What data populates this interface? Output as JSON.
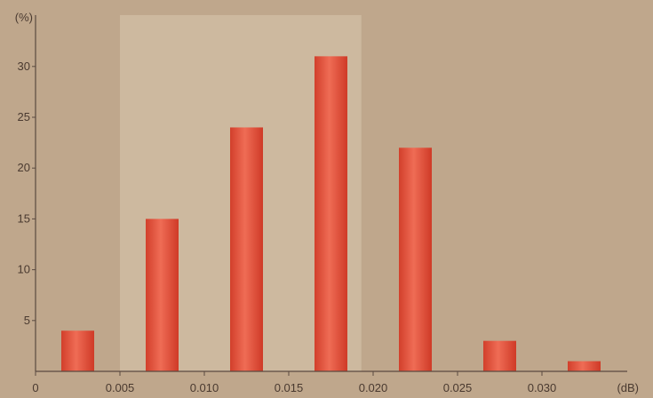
{
  "chart_data": {
    "type": "bar",
    "title": "",
    "xlabel": "",
    "ylabel": "",
    "y_unit": "(%)",
    "x_unit": "(dB)",
    "bins": [
      {
        "center": 0.0025,
        "width": 0.005,
        "value": 4
      },
      {
        "center": 0.0075,
        "width": 0.005,
        "value": 15
      },
      {
        "center": 0.0125,
        "width": 0.005,
        "value": 24
      },
      {
        "center": 0.0175,
        "width": 0.005,
        "value": 31
      },
      {
        "center": 0.0225,
        "width": 0.005,
        "value": 22
      },
      {
        "center": 0.0275,
        "width": 0.005,
        "value": 3
      },
      {
        "center": 0.0325,
        "width": 0.005,
        "value": 1
      }
    ],
    "xlim": [
      0,
      0.035
    ],
    "ylim": [
      0,
      35
    ],
    "x_ticks": [
      {
        "value": 0,
        "label": "0"
      },
      {
        "value": 0.005,
        "label": "0.005"
      },
      {
        "value": 0.01,
        "label": "0.010"
      },
      {
        "value": 0.015,
        "label": "0.015"
      },
      {
        "value": 0.02,
        "label": "0.020"
      },
      {
        "value": 0.025,
        "label": "0.025"
      },
      {
        "value": 0.03,
        "label": "0.030"
      }
    ],
    "y_ticks": [
      {
        "value": 5,
        "label": "5"
      },
      {
        "value": 10,
        "label": "10"
      },
      {
        "value": 15,
        "label": "15"
      },
      {
        "value": 20,
        "label": "20"
      },
      {
        "value": 25,
        "label": "25"
      },
      {
        "value": 30,
        "label": "30"
      }
    ],
    "highlight_region": {
      "x_start": 0.005,
      "x_end": 0.0193,
      "color": "#cdb99f"
    },
    "grid": false,
    "legend": "none",
    "colors": {
      "background": "#bfa78c",
      "bar": "#dc4a34",
      "bar_highlight": "#ee6a52",
      "axis": "#5a4a40",
      "text": "#4a3a30"
    }
  }
}
